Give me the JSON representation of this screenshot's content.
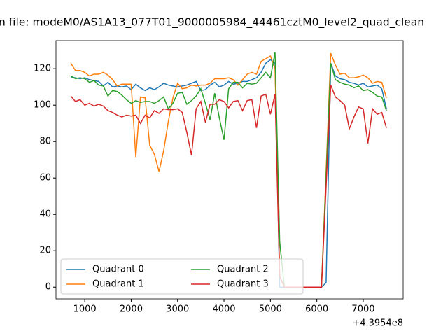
{
  "chart_data": {
    "type": "line",
    "title": "n file: modeM0/AS1A13_077T01_9000005984_44461cztM0_level2_quad_clean",
    "x_offset_label": "+4.3954e8",
    "x": [
      700,
      800,
      900,
      1000,
      1100,
      1200,
      1300,
      1400,
      1500,
      1600,
      1700,
      1800,
      1900,
      2000,
      2100,
      2200,
      2300,
      2400,
      2500,
      2600,
      2700,
      2800,
      2900,
      3000,
      3100,
      3200,
      3300,
      3400,
      3500,
      3600,
      3700,
      3800,
      3900,
      4000,
      4100,
      4200,
      4300,
      4400,
      4500,
      4600,
      4700,
      4800,
      4900,
      5000,
      5100,
      5200,
      5300,
      5400,
      5500,
      5600,
      5700,
      5800,
      5900,
      6000,
      6100,
      6200,
      6300,
      6400,
      6500,
      6600,
      6700,
      6800,
      6900,
      7000,
      7100,
      7200,
      7300,
      7400,
      7500
    ],
    "series": [
      {
        "name": "Quadrant 0",
        "color": "#1f77b4",
        "values": [
          115.5,
          115,
          114.5,
          115,
          114,
          113.5,
          113,
          110.5,
          112.5,
          110,
          110.5,
          110,
          110.5,
          108.5,
          111.5,
          109.5,
          108,
          109.5,
          108.5,
          110,
          112,
          111,
          110.5,
          110,
          110.5,
          111,
          112,
          113,
          108,
          108.5,
          111,
          112.5,
          110,
          111,
          113,
          111.5,
          112,
          113,
          113,
          114,
          115,
          118,
          123,
          125,
          123,
          0,
          0,
          0,
          0,
          0,
          0,
          0,
          0,
          0,
          0,
          2.5,
          123,
          116,
          114.5,
          114,
          112.5,
          112,
          111,
          112,
          110,
          110.5,
          111,
          109,
          98
        ]
      },
      {
        "name": "Quadrant 1",
        "color": "#ff7f0e",
        "values": [
          123,
          119,
          119,
          118,
          116,
          117,
          117,
          118,
          116.5,
          114,
          110.5,
          111.5,
          111.5,
          111.5,
          71.5,
          104.5,
          104,
          78,
          73,
          63.5,
          75,
          91,
          104,
          112,
          109,
          109.5,
          111,
          110.5,
          111,
          111,
          112,
          114.5,
          114.5,
          114.5,
          115,
          114,
          111,
          114,
          117,
          118,
          117,
          124,
          125.5,
          127,
          120,
          6,
          0,
          0,
          0,
          0,
          0,
          0,
          0,
          0,
          0,
          64,
          128.5,
          122,
          117,
          117.5,
          115,
          115,
          115.5,
          116.5,
          115,
          112,
          113,
          112.5,
          104
        ]
      },
      {
        "name": "Quadrant 2",
        "color": "#2ca02c",
        "values": [
          116,
          114.5,
          115,
          114.5,
          112.5,
          113.5,
          111,
          110.5,
          105,
          108,
          107.5,
          105.5,
          103,
          101,
          102.5,
          101.5,
          102,
          102,
          101,
          102.5,
          104.5,
          98,
          101,
          106.5,
          107,
          100.5,
          102.5,
          105,
          109,
          101,
          92,
          106.5,
          93,
          81,
          109,
          112.5,
          112.5,
          109.5,
          112,
          111.5,
          112,
          115,
          118,
          115,
          129,
          25,
          0,
          0,
          0,
          0,
          0,
          0,
          0,
          0,
          0,
          61,
          123,
          114,
          112.5,
          111.5,
          111,
          109.5,
          110.5,
          108,
          108.5,
          107,
          105,
          104.5,
          97
        ]
      },
      {
        "name": "Quadrant 3",
        "color": "#d62728",
        "values": [
          105,
          102,
          103,
          100,
          101,
          99.5,
          100.5,
          99.5,
          97,
          96,
          94.5,
          93.5,
          94.5,
          94,
          94.5,
          90,
          94.5,
          93,
          97,
          95.5,
          98,
          97.5,
          97.5,
          98,
          96,
          85,
          72.5,
          98,
          102,
          90.5,
          100.5,
          100.5,
          103,
          102,
          98.5,
          102,
          102.5,
          97,
          102.5,
          103,
          87.5,
          105,
          106,
          95,
          106,
          6,
          0,
          0,
          0,
          0,
          0,
          0,
          0,
          0,
          0,
          55,
          111,
          104.5,
          102.5,
          100,
          87,
          93.5,
          99,
          98,
          79,
          98,
          95,
          96,
          87.5
        ]
      }
    ],
    "xlim": [
      380,
      7860
    ],
    "ylim": [
      -6.45,
      135.45
    ],
    "xticks": [
      1000,
      2000,
      3000,
      4000,
      5000,
      6000,
      7000
    ],
    "yticks": [
      0,
      20,
      40,
      60,
      80,
      100,
      120
    ],
    "legend": "lower left",
    "legend_columns": 2
  }
}
